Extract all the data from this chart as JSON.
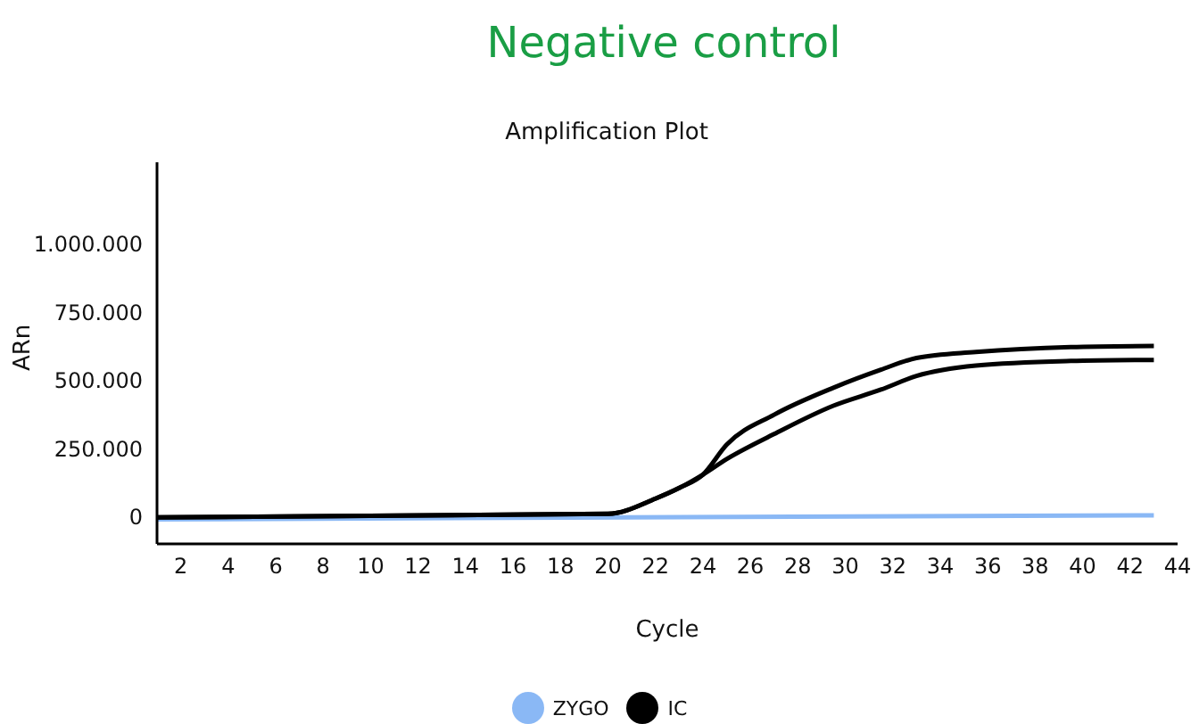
{
  "chart_data": {
    "type": "line",
    "title": "Negative control",
    "subtitle": "Amplification Plot",
    "xlabel": "Cycle",
    "ylabel": "ARn",
    "xlim": [
      1,
      44
    ],
    "xticks": [
      2,
      4,
      6,
      8,
      10,
      12,
      14,
      16,
      18,
      20,
      22,
      24,
      26,
      28,
      30,
      32,
      34,
      36,
      38,
      40,
      42,
      44
    ],
    "ylim": [
      -100000,
      1300000
    ],
    "yticks": [
      {
        "value": 0,
        "label": "0"
      },
      {
        "value": 250000,
        "label": "250.000"
      },
      {
        "value": 500000,
        "label": "500.000"
      },
      {
        "value": 750000,
        "label": "750.000"
      },
      {
        "value": 1000000,
        "label": "1.000.000"
      }
    ],
    "legend": "bottom",
    "marker": "none",
    "line_style": "solid",
    "series": [
      {
        "name": "ZYGO",
        "color": "#8ab8f5",
        "x": [
          1,
          43
        ],
        "values": [
          -10000,
          5000
        ]
      },
      {
        "name": "IC",
        "color": "#000000",
        "x": [
          1,
          20,
          22,
          23,
          24,
          25,
          27,
          29.5,
          31.5,
          33,
          35.5,
          39.5,
          43
        ],
        "values": [
          -3000,
          10000,
          66000,
          105000,
          154000,
          264000,
          374000,
          473000,
          539000,
          582000,
          604000,
          622000,
          626000
        ]
      },
      {
        "color": "#000000",
        "x": [
          1,
          20,
          22,
          23,
          24,
          25,
          27,
          29.5,
          31.5,
          33,
          35.5,
          39.5,
          43
        ],
        "values": [
          -3000,
          10000,
          66000,
          105000,
          154000,
          211000,
          303000,
          407000,
          466000,
          516000,
          554000,
          571000,
          575000
        ]
      }
    ]
  }
}
